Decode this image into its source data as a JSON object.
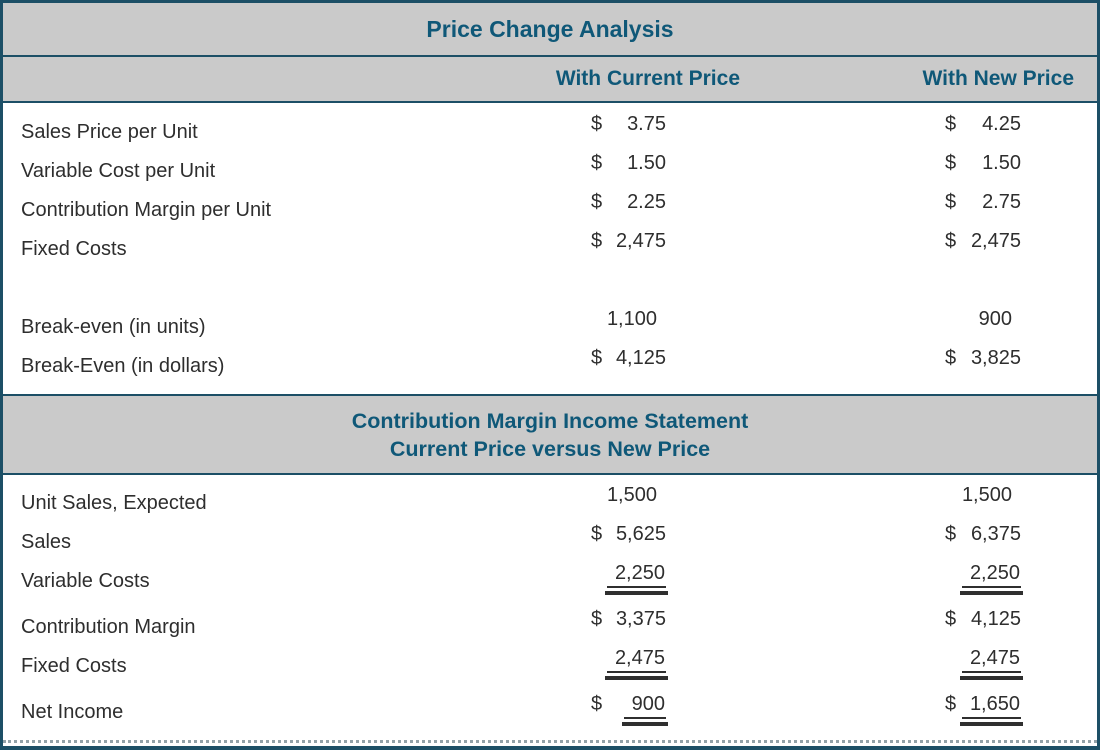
{
  "colors": {
    "accent_teal": "#0F5878",
    "border": "#1C4F66",
    "header_gray": "#CACACA",
    "body_text": "#2E2E2E",
    "rule_lines": "#2F2F2F"
  },
  "section1": {
    "title": "Price Change Analysis",
    "col_header_current": "With Current Price",
    "col_header_new": "With New Price",
    "rows": [
      {
        "label": "Sales Price per Unit",
        "cur1": "$",
        "val1": "3.75",
        "cur2": "$",
        "val2": "4.25"
      },
      {
        "label": "Variable Cost per Unit",
        "cur1": "$",
        "val1": "1.50",
        "cur2": "$",
        "val2": "1.50"
      },
      {
        "label": "Contribution Margin per Unit",
        "cur1": "$",
        "val1": "2.25",
        "cur2": "$",
        "val2": "2.75"
      },
      {
        "label": "Fixed Costs",
        "cur1": "$",
        "val1": "2,475",
        "cur2": "$",
        "val2": "2,475"
      },
      {
        "blank": true
      },
      {
        "label": "Break-even (in units)",
        "val1": "1,100",
        "val2": "900",
        "unit": true
      },
      {
        "label": "Break-Even (in dollars)",
        "cur1": "$",
        "val1": "4,125",
        "cur2": "$",
        "val2": "3,825"
      }
    ]
  },
  "section2": {
    "title_line1": "Contribution Margin Income Statement",
    "title_line2": "Current Price versus New Price",
    "rows": [
      {
        "label": "Unit Sales, Expected",
        "val1": "1,500",
        "val2": "1,500",
        "unit": true
      },
      {
        "label": "Sales",
        "cur1": "$",
        "val1": "5,625",
        "cur2": "$",
        "val2": "6,375"
      },
      {
        "label": "Variable Costs",
        "val1": "2,250",
        "val2": "2,250",
        "underline": true
      },
      {
        "label": "Contribution Margin",
        "cur1": "$",
        "val1": "3,375",
        "cur2": "$",
        "val2": "4,125"
      },
      {
        "label": "Fixed Costs",
        "val1": "2,475",
        "val2": "2,475",
        "underline": true
      },
      {
        "label": "Net Income",
        "cur1": "$",
        "val1": "900",
        "cur2": "$",
        "val2": "1,650",
        "underline": true
      }
    ]
  }
}
